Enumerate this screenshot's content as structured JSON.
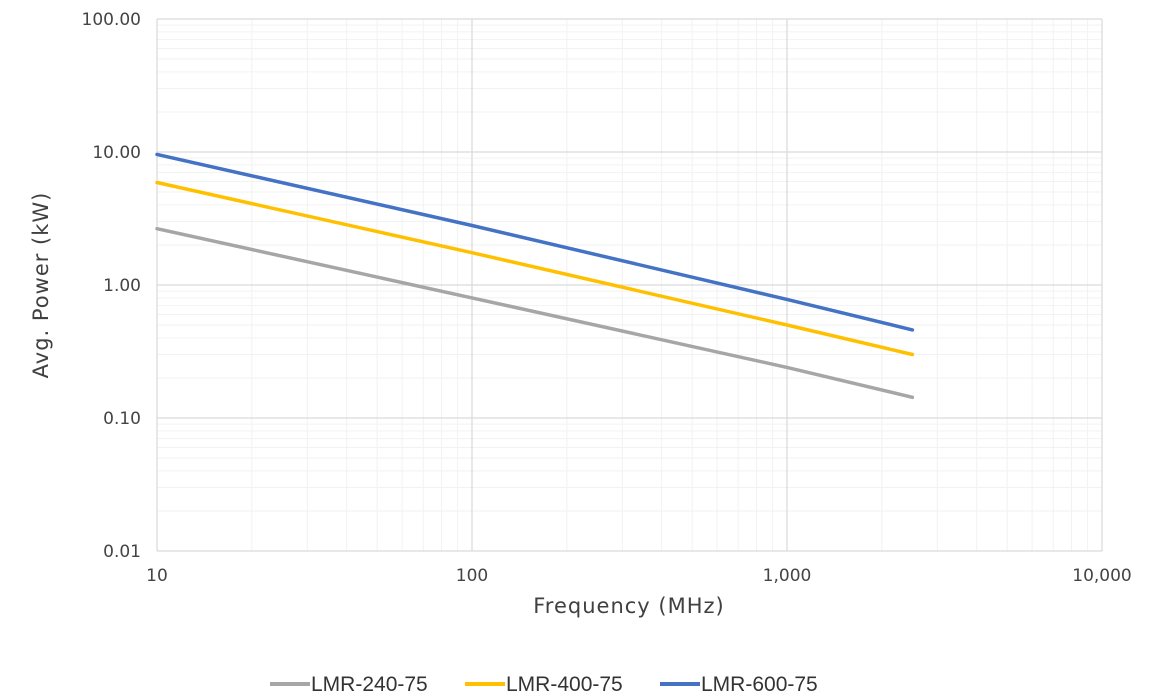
{
  "chart_data": {
    "type": "line",
    "title": "",
    "xlabel": "Frequency (MHz)",
    "ylabel": "Avg. Power (kW)",
    "x_scale": "log",
    "y_scale": "log",
    "xlim": [
      10,
      10000
    ],
    "ylim": [
      0.01,
      100
    ],
    "x_ticks": [
      10,
      100,
      1000,
      10000
    ],
    "x_tick_labels": [
      "10",
      "100",
      "1,000",
      "10,000"
    ],
    "y_ticks": [
      100,
      10,
      1,
      0.1,
      0.01
    ],
    "y_tick_labels": [
      "100.00",
      "10.00",
      "1.00",
      "0.10",
      "0.01"
    ],
    "grid": true,
    "legend_position": "bottom",
    "series": [
      {
        "name": "LMR-240-75",
        "color": "#a6a6a6",
        "points": [
          {
            "x": 10,
            "y": 2.65
          },
          {
            "x": 100,
            "y": 0.8
          },
          {
            "x": 1000,
            "y": 0.24
          },
          {
            "x": 2500,
            "y": 0.143
          }
        ]
      },
      {
        "name": "LMR-400-75",
        "color": "#ffc000",
        "points": [
          {
            "x": 10,
            "y": 5.9
          },
          {
            "x": 100,
            "y": 1.75
          },
          {
            "x": 1000,
            "y": 0.5
          },
          {
            "x": 2500,
            "y": 0.3
          }
        ]
      },
      {
        "name": "LMR-600-75",
        "color": "#4472c4",
        "points": [
          {
            "x": 10,
            "y": 9.6
          },
          {
            "x": 100,
            "y": 2.8
          },
          {
            "x": 1000,
            "y": 0.78
          },
          {
            "x": 2500,
            "y": 0.46
          }
        ]
      }
    ]
  }
}
